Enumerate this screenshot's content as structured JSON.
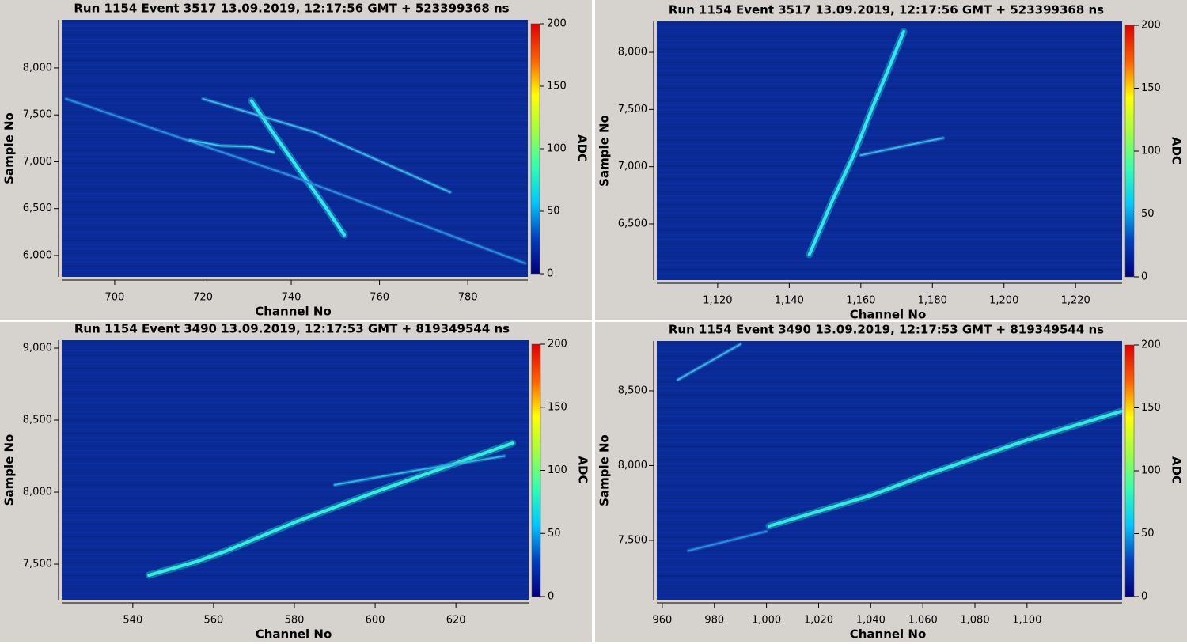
{
  "chart_data": [
    {
      "type": "heatmap",
      "title": "Run 1154 Event 3517 13.09.2019, 12:17:56 GMT + 523399368 ns",
      "xlabel": "Channel No",
      "ylabel": "Sample No",
      "colorbar_label": "ADC",
      "xlim": [
        688,
        793.6
      ],
      "ylim": [
        5772,
        8514
      ],
      "xticks": [
        700,
        720,
        740,
        760,
        780
      ],
      "yticks": [
        {
          "value": 6000,
          "label": "6,000"
        },
        {
          "value": 6500,
          "label": "6,500"
        },
        {
          "value": 7000,
          "label": "7,000"
        },
        {
          "value": 7500,
          "label": "7,500"
        },
        {
          "value": 8000,
          "label": "8,000"
        }
      ],
      "clim": [
        0,
        200
      ],
      "cticks": [
        0,
        50,
        100,
        150,
        200
      ],
      "colormap": [
        "#00007f",
        "#0040c0",
        "#00c8ff",
        "#30ffb0",
        "#a0ff40",
        "#ffff00",
        "#ff6000",
        "#e00000"
      ],
      "series": [
        {
          "color": "#30e8e8",
          "x": [
            731,
            736,
            742,
            748,
            752
          ],
          "values": [
            7650,
            7300,
            6900,
            6500,
            6220
          ]
        },
        {
          "color": "#2a8ee0",
          "x": [
            689,
            740,
            793
          ],
          "values": [
            7671,
            6850,
            5916
          ]
        },
        {
          "color": "#3cb4e6",
          "x": [
            720,
            745,
            776
          ],
          "values": [
            7671,
            7320,
            6676
          ]
        },
        {
          "color": "#3cc8e6",
          "x": [
            717,
            724,
            731,
            736
          ],
          "values": [
            7230,
            7170,
            7160,
            7100
          ]
        }
      ]
    },
    {
      "type": "heatmap",
      "title": "Run 1154 Event 3517 13.09.2019, 12:17:56 GMT + 523399368 ns",
      "xlabel": "Channel No",
      "ylabel": "Sample No",
      "colorbar_label": "ADC",
      "xlim": [
        1103,
        1233
      ],
      "ylim": [
        6009,
        8270
      ],
      "xticks": [
        {
          "value": 1120,
          "label": "1,120"
        },
        {
          "value": 1140,
          "label": "1,140"
        },
        {
          "value": 1160,
          "label": "1,160"
        },
        {
          "value": 1180,
          "label": "1,180"
        },
        {
          "value": 1200,
          "label": "1,200"
        },
        {
          "value": 1220,
          "label": "1,220"
        }
      ],
      "yticks": [
        {
          "value": 6500,
          "label": "6,500"
        },
        {
          "value": 7000,
          "label": "7,000"
        },
        {
          "value": 7500,
          "label": "7,500"
        },
        {
          "value": 8000,
          "label": "8,000"
        }
      ],
      "clim": [
        0,
        200
      ],
      "cticks": [
        0,
        50,
        100,
        150,
        200
      ],
      "colormap": [
        "#00007f",
        "#0040c0",
        "#00c8ff",
        "#30ffb0",
        "#a0ff40",
        "#ffff00",
        "#ff6000",
        "#e00000"
      ],
      "series": [
        {
          "color": "#30e8e8",
          "x": [
            1145.6,
            1152,
            1158,
            1163,
            1167,
            1172
          ],
          "values": [
            6230,
            6700,
            7100,
            7500,
            7800,
            8180
          ]
        },
        {
          "color": "#3cb4e6",
          "x": [
            1160,
            1172,
            1183
          ],
          "values": [
            7100,
            7180,
            7250
          ]
        }
      ]
    },
    {
      "type": "heatmap",
      "title": "Run 1154 Event 3490 13.09.2019, 12:17:53 GMT + 819349544 ns",
      "xlabel": "Channel No",
      "ylabel": "Sample No",
      "colorbar_label": "ADC",
      "xlim": [
        522.4,
        638
      ],
      "ylim": [
        7253,
        9055
      ],
      "xticks": [
        540,
        560,
        580,
        600,
        620
      ],
      "yticks": [
        {
          "value": 7500,
          "label": "7,500"
        },
        {
          "value": 8000,
          "label": "8,000"
        },
        {
          "value": 8500,
          "label": "8,500"
        },
        {
          "value": 9000,
          "label": "9,000"
        }
      ],
      "clim": [
        0,
        200
      ],
      "cticks": [
        0,
        50,
        100,
        150,
        200
      ],
      "colormap": [
        "#00007f",
        "#0040c0",
        "#00c8ff",
        "#30ffb0",
        "#a0ff40",
        "#ffff00",
        "#ff6000",
        "#e00000"
      ],
      "series": [
        {
          "color": "#30f0d8",
          "x": [
            544,
            556,
            563,
            580,
            600,
            620,
            634
          ],
          "values": [
            7423,
            7520,
            7590,
            7790,
            8000,
            8200,
            8340
          ]
        },
        {
          "color": "#2ab8e0",
          "x": [
            590,
            610,
            632
          ],
          "values": [
            8050,
            8150,
            8250
          ]
        }
      ]
    },
    {
      "type": "heatmap",
      "title": "Run 1154 Event 3490 13.09.2019, 12:17:53 GMT + 819349544 ns",
      "xlabel": "Channel No",
      "ylabel": "Sample No",
      "colorbar_label": "ADC",
      "xlim": [
        957.9,
        1136.5
      ],
      "ylim": [
        7103,
        8833
      ],
      "xticks": [
        960,
        980,
        {
          "value": 1000,
          "label": "1,000"
        },
        {
          "value": 1020,
          "label": "1,020"
        },
        {
          "value": 1040,
          "label": "1,040"
        },
        {
          "value": 1060,
          "label": "1,060"
        },
        {
          "value": 1080,
          "label": "1,080"
        },
        {
          "value": 1100,
          "label": "1,100"
        }
      ],
      "yticks": [
        {
          "value": 7500,
          "label": "7,500"
        },
        {
          "value": 8000,
          "label": "8,000"
        },
        {
          "value": 8500,
          "label": "8,500"
        }
      ],
      "clim": [
        0,
        200
      ],
      "cticks": [
        0,
        50,
        100,
        150,
        200
      ],
      "colormap": [
        "#00007f",
        "#0040c0",
        "#00c8ff",
        "#30ffb0",
        "#a0ff40",
        "#ffff00",
        "#ff6000",
        "#e00000"
      ],
      "series": [
        {
          "color": "#30ecd8",
          "x": [
            1001,
            1040,
            1060,
            1100,
            1136
          ],
          "values": [
            7595,
            7800,
            7930,
            8170,
            8362
          ]
        },
        {
          "color": "#2a8ee0",
          "x": [
            970,
            1000
          ],
          "values": [
            7430,
            7560
          ]
        },
        {
          "color": "#3cb4e6",
          "x": [
            966,
            990
          ],
          "values": [
            8574,
            8812
          ]
        }
      ]
    }
  ]
}
